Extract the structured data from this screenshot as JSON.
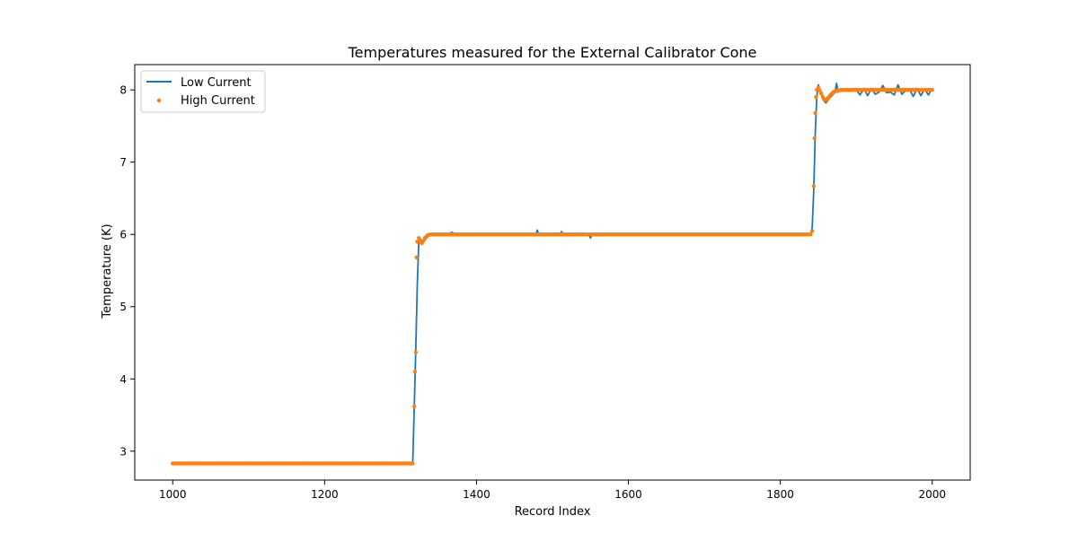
{
  "chart_data": {
    "type": "line",
    "title": "Temperatures measured for the External Calibrator Cone",
    "xlabel": "Record Index",
    "ylabel": "Temperature (K)",
    "xlim": [
      950,
      2050
    ],
    "ylim": [
      2.6,
      8.35
    ],
    "xticks": [
      1000,
      1200,
      1400,
      1600,
      1800,
      2000
    ],
    "yticks": [
      3,
      4,
      5,
      6,
      7,
      8
    ],
    "grid": false,
    "legend_position": "upper left",
    "series": [
      {
        "name": "Low Current",
        "style": "line",
        "color": "#1f77b4",
        "points": [
          [
            1000,
            2.83
          ],
          [
            1100,
            2.83
          ],
          [
            1200,
            2.83
          ],
          [
            1300,
            2.83
          ],
          [
            1316,
            2.83
          ],
          [
            1318,
            3.6
          ],
          [
            1320,
            4.4
          ],
          [
            1322,
            5.3
          ],
          [
            1324,
            5.9
          ],
          [
            1326,
            5.93
          ],
          [
            1330,
            5.9
          ],
          [
            1335,
            5.96
          ],
          [
            1340,
            6.0
          ],
          [
            1360,
            6.0
          ],
          [
            1368,
            6.03
          ],
          [
            1372,
            5.99
          ],
          [
            1400,
            6.0
          ],
          [
            1420,
            5.99
          ],
          [
            1450,
            6.01
          ],
          [
            1478,
            6.0
          ],
          [
            1480,
            6.06
          ],
          [
            1482,
            6.0
          ],
          [
            1510,
            6.0
          ],
          [
            1512,
            6.04
          ],
          [
            1514,
            6.0
          ],
          [
            1548,
            6.0
          ],
          [
            1550,
            5.95
          ],
          [
            1552,
            6.0
          ],
          [
            1600,
            6.0
          ],
          [
            1650,
            6.0
          ],
          [
            1700,
            5.99
          ],
          [
            1750,
            6.0
          ],
          [
            1800,
            6.0
          ],
          [
            1830,
            6.0
          ],
          [
            1840,
            6.0
          ],
          [
            1842,
            6.1
          ],
          [
            1844,
            6.6
          ],
          [
            1846,
            7.4
          ],
          [
            1848,
            7.9
          ],
          [
            1850,
            8.07
          ],
          [
            1853,
            7.98
          ],
          [
            1856,
            7.87
          ],
          [
            1860,
            7.82
          ],
          [
            1864,
            7.88
          ],
          [
            1868,
            7.92
          ],
          [
            1872,
            7.97
          ],
          [
            1874,
            8.09
          ],
          [
            1876,
            7.97
          ],
          [
            1880,
            7.99
          ],
          [
            1890,
            7.98
          ],
          [
            1900,
            8.0
          ],
          [
            1905,
            7.93
          ],
          [
            1910,
            8.02
          ],
          [
            1915,
            7.92
          ],
          [
            1920,
            8.02
          ],
          [
            1925,
            7.94
          ],
          [
            1930,
            7.97
          ],
          [
            1935,
            8.06
          ],
          [
            1940,
            7.96
          ],
          [
            1945,
            7.97
          ],
          [
            1950,
            7.93
          ],
          [
            1955,
            8.07
          ],
          [
            1960,
            7.94
          ],
          [
            1965,
            7.99
          ],
          [
            1970,
            8.01
          ],
          [
            1975,
            7.91
          ],
          [
            1980,
            8.02
          ],
          [
            1985,
            7.92
          ],
          [
            1990,
            8.01
          ],
          [
            1995,
            7.93
          ],
          [
            2000,
            8.02
          ]
        ]
      },
      {
        "name": "High Current",
        "style": "scatter",
        "color": "#ff7f0e",
        "points": [
          [
            1000,
            2.83
          ],
          [
            1316,
            2.83
          ],
          [
            1318,
            3.62
          ],
          [
            1319,
            4.1
          ],
          [
            1320,
            4.37
          ],
          [
            1321,
            5.68
          ],
          [
            1322,
            5.9
          ],
          [
            1324,
            5.95
          ],
          [
            1326,
            5.9
          ],
          [
            1328,
            5.88
          ],
          [
            1330,
            5.91
          ],
          [
            1332,
            5.95
          ],
          [
            1334,
            5.97
          ],
          [
            1336,
            5.99
          ],
          [
            1340,
            6.0
          ],
          [
            1840,
            6.0
          ],
          [
            1842,
            6.05
          ],
          [
            1844,
            6.67
          ],
          [
            1845,
            7.33
          ],
          [
            1846,
            7.68
          ],
          [
            1847,
            7.9
          ],
          [
            1848,
            8.0
          ],
          [
            1850,
            8.03
          ],
          [
            1852,
            7.99
          ],
          [
            1854,
            7.95
          ],
          [
            1856,
            7.9
          ],
          [
            1858,
            7.87
          ],
          [
            1860,
            7.86
          ],
          [
            1862,
            7.88
          ],
          [
            1864,
            7.9
          ],
          [
            1866,
            7.93
          ],
          [
            1868,
            7.95
          ],
          [
            1870,
            7.97
          ],
          [
            1872,
            7.98
          ],
          [
            1875,
            7.99
          ],
          [
            1880,
            8.0
          ],
          [
            2000,
            8.0
          ]
        ]
      }
    ]
  }
}
